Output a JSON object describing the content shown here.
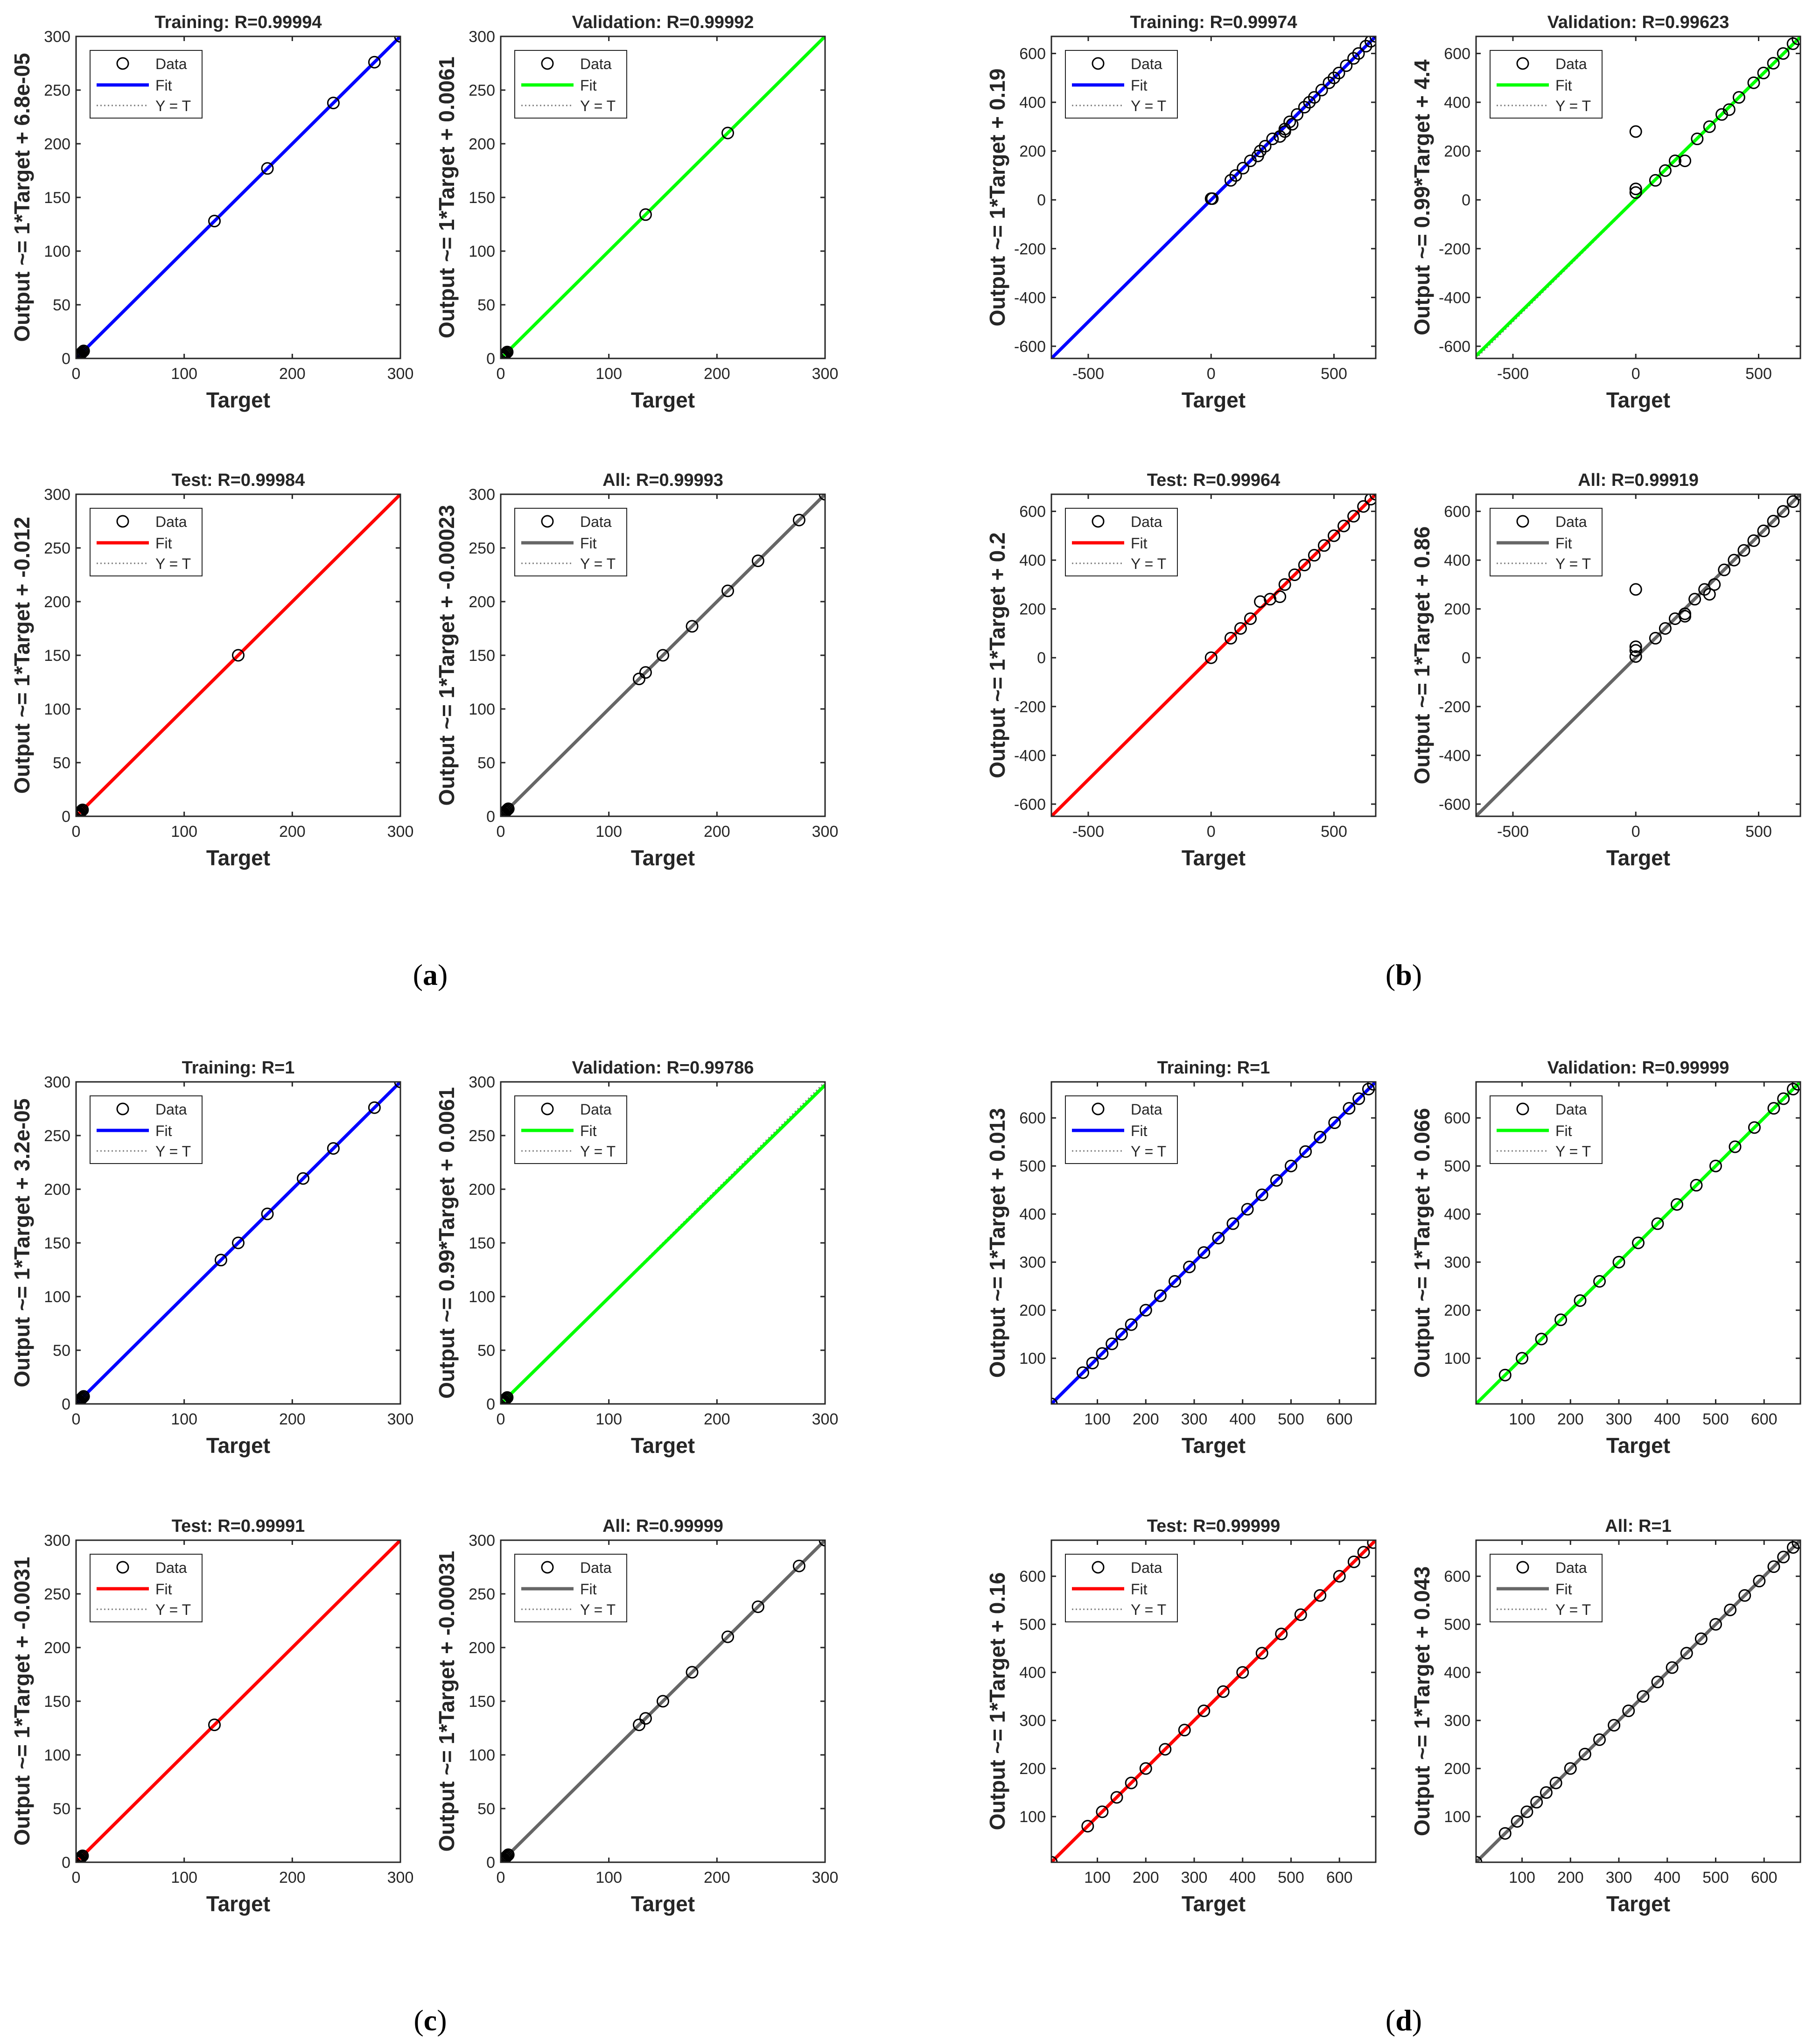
{
  "figure": {
    "captions": [
      {
        "id": "a",
        "text": "a"
      },
      {
        "id": "b",
        "text": "b"
      },
      {
        "id": "c",
        "text": "c"
      },
      {
        "id": "d",
        "text": "d"
      }
    ],
    "legend_labels": {
      "data": "Data",
      "fit": "Fit",
      "yt": "Y = T"
    },
    "colors": {
      "training": "#0000ff",
      "validation": "#00ff00",
      "test": "#ff0000",
      "all": "#666666",
      "data": "#000000",
      "axis": "#262626",
      "ideal": "#808080"
    }
  },
  "chart_data": [
    {
      "panel": "a",
      "type": "scatter",
      "title": "Training: R=0.99994",
      "xlabel": "Target",
      "ylabel": "Output ~= 1*Target + 6.8e-05",
      "xlim": [
        0,
        300
      ],
      "ylim": [
        0,
        300
      ],
      "xticks": [
        0,
        100,
        200,
        300
      ],
      "yticks": [
        0,
        50,
        100,
        150,
        200,
        250,
        300
      ],
      "fit": {
        "slope": 1,
        "intercept": 6.8e-05
      },
      "fit_color": "training",
      "x": [
        0.5,
        1,
        1.5,
        2,
        2.5,
        3,
        3.5,
        4,
        5,
        6,
        7,
        128,
        177,
        238,
        276,
        300
      ],
      "y": [
        0.5,
        1,
        1.5,
        2,
        2.5,
        3,
        3.5,
        4,
        5,
        6,
        7,
        128,
        177,
        238,
        276,
        300
      ]
    },
    {
      "panel": "a",
      "type": "scatter",
      "title": "Validation: R=0.99992",
      "xlabel": "Target",
      "ylabel": "Output ~= 1*Target + 0.0061",
      "xlim": [
        0,
        300
      ],
      "ylim": [
        0,
        300
      ],
      "xticks": [
        0,
        100,
        200,
        300
      ],
      "yticks": [
        0,
        50,
        100,
        150,
        200,
        250,
        300
      ],
      "fit": {
        "slope": 1,
        "intercept": 0.0061
      },
      "fit_color": "validation",
      "x": [
        0.5,
        1,
        1.5,
        2,
        2.5,
        3,
        4,
        5,
        6,
        134,
        210
      ],
      "y": [
        0.5,
        1,
        1.5,
        2,
        2.5,
        3,
        4,
        5,
        6,
        134,
        210
      ]
    },
    {
      "panel": "a",
      "type": "scatter",
      "title": "Test: R=0.99984",
      "xlabel": "Target",
      "ylabel": "Output ~= 1*Target + -0.012",
      "xlim": [
        0,
        300
      ],
      "ylim": [
        0,
        300
      ],
      "xticks": [
        0,
        100,
        200,
        300
      ],
      "yticks": [
        0,
        50,
        100,
        150,
        200,
        250,
        300
      ],
      "fit": {
        "slope": 1,
        "intercept": -0.012
      },
      "fit_color": "test",
      "x": [
        0.5,
        1,
        1.5,
        2,
        2.5,
        3,
        4,
        5,
        6,
        150
      ],
      "y": [
        0.5,
        1,
        1.5,
        2,
        2.5,
        3,
        4,
        5,
        6,
        150
      ]
    },
    {
      "panel": "a",
      "type": "scatter",
      "title": "All: R=0.99993",
      "xlabel": "Target",
      "ylabel": "Output ~= 1*Target + -0.00023",
      "xlim": [
        0,
        300
      ],
      "ylim": [
        0,
        300
      ],
      "xticks": [
        0,
        100,
        200,
        300
      ],
      "yticks": [
        0,
        50,
        100,
        150,
        200,
        250,
        300
      ],
      "fit": {
        "slope": 1,
        "intercept": -0.00023
      },
      "fit_color": "all",
      "x": [
        0.5,
        1,
        1.5,
        2,
        2.5,
        3,
        4,
        5,
        6,
        7,
        128,
        134,
        150,
        177,
        210,
        238,
        276,
        300
      ],
      "y": [
        0.5,
        1,
        1.5,
        2,
        2.5,
        3,
        4,
        5,
        6,
        7,
        128,
        134,
        150,
        177,
        210,
        238,
        276,
        300
      ]
    },
    {
      "panel": "b",
      "type": "scatter",
      "title": "Training: R=0.99974",
      "xlabel": "Target",
      "ylabel": "Output ~= 1*Target + 0.19",
      "xlim": [
        -650,
        670
      ],
      "ylim": [
        -650,
        670
      ],
      "xticks": [
        -500,
        0,
        500
      ],
      "yticks": [
        -600,
        -400,
        -200,
        0,
        200,
        400,
        600
      ],
      "fit": {
        "slope": 1,
        "intercept": 0.19
      },
      "fit_color": "training",
      "x": [
        0,
        5,
        80,
        100,
        130,
        160,
        190,
        200,
        220,
        250,
        280,
        300,
        320,
        350,
        380,
        400,
        420,
        450,
        480,
        500,
        520,
        550,
        580,
        600,
        630,
        650,
        670,
        300,
        330
      ],
      "y": [
        5,
        5,
        80,
        100,
        130,
        160,
        180,
        200,
        220,
        250,
        260,
        290,
        320,
        350,
        380,
        400,
        420,
        450,
        480,
        500,
        520,
        550,
        580,
        600,
        630,
        650,
        670,
        280,
        310
      ]
    },
    {
      "panel": "b",
      "type": "scatter",
      "title": "Validation: R=0.99623",
      "xlabel": "Target",
      "ylabel": "Output ~= 0.99*Target + 4.4",
      "xlim": [
        -650,
        670
      ],
      "ylim": [
        -650,
        670
      ],
      "xticks": [
        -500,
        0,
        500
      ],
      "yticks": [
        -600,
        -400,
        -200,
        0,
        200,
        400,
        600
      ],
      "fit": {
        "slope": 0.99,
        "intercept": 4.4
      },
      "fit_color": "validation",
      "x": [
        0,
        0,
        0,
        80,
        120,
        160,
        200,
        250,
        300,
        350,
        380,
        420,
        480,
        520,
        560,
        600,
        640,
        660
      ],
      "y": [
        280,
        45,
        30,
        80,
        120,
        160,
        160,
        250,
        300,
        350,
        370,
        420,
        480,
        520,
        560,
        600,
        640,
        660
      ]
    },
    {
      "panel": "b",
      "type": "scatter",
      "title": "Test: R=0.99964",
      "xlabel": "Target",
      "ylabel": "Output ~= 1*Target + 0.2",
      "xlim": [
        -650,
        670
      ],
      "ylim": [
        -650,
        670
      ],
      "xticks": [
        -500,
        0,
        500
      ],
      "yticks": [
        -600,
        -400,
        -200,
        0,
        200,
        400,
        600
      ],
      "fit": {
        "slope": 1,
        "intercept": 0.2
      },
      "fit_color": "test",
      "x": [
        0,
        80,
        120,
        160,
        200,
        240,
        280,
        300,
        340,
        380,
        420,
        460,
        500,
        540,
        580,
        620,
        650,
        670
      ],
      "y": [
        0,
        80,
        120,
        160,
        230,
        240,
        250,
        300,
        340,
        380,
        420,
        460,
        500,
        540,
        580,
        620,
        650,
        670
      ]
    },
    {
      "panel": "b",
      "type": "scatter",
      "title": "All: R=0.99919",
      "xlabel": "Target",
      "ylabel": "Output ~= 1*Target + 0.86",
      "xlim": [
        -650,
        670
      ],
      "ylim": [
        -650,
        670
      ],
      "xticks": [
        -500,
        0,
        500
      ],
      "yticks": [
        -600,
        -400,
        -200,
        0,
        200,
        400,
        600
      ],
      "fit": {
        "slope": 1,
        "intercept": 0.86
      },
      "fit_color": "all",
      "x": [
        0,
        0,
        0,
        0,
        80,
        120,
        160,
        200,
        240,
        280,
        320,
        360,
        400,
        440,
        480,
        520,
        560,
        600,
        640,
        670,
        200,
        300
      ],
      "y": [
        280,
        45,
        30,
        5,
        80,
        120,
        160,
        180,
        240,
        280,
        300,
        360,
        400,
        440,
        480,
        520,
        560,
        600,
        640,
        670,
        170,
        260
      ]
    },
    {
      "panel": "c",
      "type": "scatter",
      "title": "Training: R=1",
      "xlabel": "Target",
      "ylabel": "Output ~= 1*Target + 3.2e-05",
      "xlim": [
        0,
        300
      ],
      "ylim": [
        0,
        300
      ],
      "xticks": [
        0,
        100,
        200,
        300
      ],
      "yticks": [
        0,
        50,
        100,
        150,
        200,
        250,
        300
      ],
      "fit": {
        "slope": 1,
        "intercept": 3.2e-05
      },
      "fit_color": "training",
      "x": [
        0.5,
        1,
        1.5,
        2,
        2.5,
        3,
        4,
        5,
        6,
        7,
        134,
        150,
        177,
        210,
        238,
        276,
        300
      ],
      "y": [
        0.5,
        1,
        1.5,
        2,
        2.5,
        3,
        4,
        5,
        6,
        7,
        134,
        150,
        177,
        210,
        238,
        276,
        300
      ]
    },
    {
      "panel": "c",
      "type": "scatter",
      "title": "Validation: R=0.99786",
      "xlabel": "Target",
      "ylabel": "Output ~= 0.99*Target + 0.0061",
      "xlim": [
        0,
        300
      ],
      "ylim": [
        0,
        300
      ],
      "xticks": [
        0,
        100,
        200,
        300
      ],
      "yticks": [
        0,
        50,
        100,
        150,
        200,
        250,
        300
      ],
      "fit": {
        "slope": 0.99,
        "intercept": 0.0061
      },
      "fit_color": "validation",
      "x": [
        0.5,
        1,
        1.5,
        2,
        2.5,
        3,
        4,
        5,
        6
      ],
      "y": [
        0.5,
        1,
        1.5,
        2,
        2.5,
        3,
        4,
        5,
        6
      ]
    },
    {
      "panel": "c",
      "type": "scatter",
      "title": "Test: R=0.99991",
      "xlabel": "Target",
      "ylabel": "Output ~= 1*Target + -0.0031",
      "xlim": [
        0,
        300
      ],
      "ylim": [
        0,
        300
      ],
      "xticks": [
        0,
        100,
        200,
        300
      ],
      "yticks": [
        0,
        50,
        100,
        150,
        200,
        250,
        300
      ],
      "fit": {
        "slope": 1,
        "intercept": -0.0031
      },
      "fit_color": "test",
      "x": [
        0.5,
        1,
        1.5,
        2,
        2.5,
        3,
        4,
        5,
        6,
        128
      ],
      "y": [
        0.5,
        1,
        1.5,
        2,
        2.5,
        3,
        4,
        5,
        6,
        128
      ]
    },
    {
      "panel": "c",
      "type": "scatter",
      "title": "All: R=0.99999",
      "xlabel": "Target",
      "ylabel": "Output ~= 1*Target + -0.00031",
      "xlim": [
        0,
        300
      ],
      "ylim": [
        0,
        300
      ],
      "xticks": [
        0,
        100,
        200,
        300
      ],
      "yticks": [
        0,
        50,
        100,
        150,
        200,
        250,
        300
      ],
      "fit": {
        "slope": 1,
        "intercept": -0.00031
      },
      "fit_color": "all",
      "x": [
        0.5,
        1,
        1.5,
        2,
        2.5,
        3,
        4,
        5,
        6,
        7,
        128,
        134,
        150,
        177,
        210,
        238,
        276,
        300
      ],
      "y": [
        0.5,
        1,
        1.5,
        2,
        2.5,
        3,
        4,
        5,
        6,
        7,
        128,
        134,
        150,
        177,
        210,
        238,
        276,
        300
      ]
    },
    {
      "panel": "d",
      "type": "scatter",
      "title": "Training: R=1",
      "xlabel": "Target",
      "ylabel": "Output ~= 1*Target + 0.013",
      "xlim": [
        5,
        675
      ],
      "ylim": [
        5,
        675
      ],
      "xticks": [
        100,
        200,
        300,
        400,
        500,
        600
      ],
      "yticks": [
        100,
        200,
        300,
        400,
        500,
        600
      ],
      "fit": {
        "slope": 1,
        "intercept": 0.013
      },
      "fit_color": "training",
      "x": [
        5,
        70,
        90,
        110,
        130,
        150,
        170,
        200,
        230,
        260,
        290,
        320,
        350,
        380,
        410,
        440,
        470,
        500,
        530,
        560,
        590,
        620,
        640,
        660,
        670
      ],
      "y": [
        5,
        70,
        90,
        110,
        130,
        150,
        170,
        200,
        230,
        260,
        290,
        320,
        350,
        380,
        410,
        440,
        470,
        500,
        530,
        560,
        590,
        620,
        640,
        660,
        670
      ]
    },
    {
      "panel": "d",
      "type": "scatter",
      "title": "Validation: R=0.99999",
      "xlabel": "Target",
      "ylabel": "Output ~= 1*Target + 0.066",
      "xlim": [
        5,
        675
      ],
      "ylim": [
        5,
        675
      ],
      "xticks": [
        100,
        200,
        300,
        400,
        500,
        600
      ],
      "yticks": [
        100,
        200,
        300,
        400,
        500,
        600
      ],
      "fit": {
        "slope": 1,
        "intercept": 0.066
      },
      "fit_color": "validation",
      "x": [
        65,
        100,
        140,
        180,
        220,
        260,
        300,
        340,
        380,
        420,
        460,
        500,
        540,
        580,
        620,
        640,
        660,
        670
      ],
      "y": [
        65,
        100,
        140,
        180,
        220,
        260,
        300,
        340,
        380,
        420,
        460,
        500,
        540,
        580,
        620,
        640,
        660,
        670
      ]
    },
    {
      "panel": "d",
      "type": "scatter",
      "title": "Test: R=0.99999",
      "xlabel": "Target",
      "ylabel": "Output ~= 1*Target + 0.16",
      "xlim": [
        5,
        675
      ],
      "ylim": [
        5,
        675
      ],
      "xticks": [
        100,
        200,
        300,
        400,
        500,
        600
      ],
      "yticks": [
        100,
        200,
        300,
        400,
        500,
        600
      ],
      "fit": {
        "slope": 1,
        "intercept": 0.16
      },
      "fit_color": "test",
      "x": [
        5,
        80,
        110,
        140,
        170,
        200,
        240,
        280,
        320,
        360,
        400,
        440,
        480,
        520,
        560,
        600,
        630,
        650,
        670
      ],
      "y": [
        5,
        80,
        110,
        140,
        170,
        200,
        240,
        280,
        320,
        360,
        400,
        440,
        480,
        520,
        560,
        600,
        630,
        650,
        670
      ]
    },
    {
      "panel": "d",
      "type": "scatter",
      "title": "All: R=1",
      "xlabel": "Target",
      "ylabel": "Output ~= 1*Target + 0.043",
      "xlim": [
        5,
        675
      ],
      "ylim": [
        5,
        675
      ],
      "xticks": [
        100,
        200,
        300,
        400,
        500,
        600
      ],
      "yticks": [
        100,
        200,
        300,
        400,
        500,
        600
      ],
      "fit": {
        "slope": 1,
        "intercept": 0.043
      },
      "fit_color": "all",
      "x": [
        5,
        65,
        90,
        110,
        130,
        150,
        170,
        200,
        230,
        260,
        290,
        320,
        350,
        380,
        410,
        440,
        470,
        500,
        530,
        560,
        590,
        620,
        640,
        660,
        670
      ],
      "y": [
        5,
        65,
        90,
        110,
        130,
        150,
        170,
        200,
        230,
        260,
        290,
        320,
        350,
        380,
        410,
        440,
        470,
        500,
        530,
        560,
        590,
        620,
        640,
        660,
        670
      ]
    }
  ]
}
